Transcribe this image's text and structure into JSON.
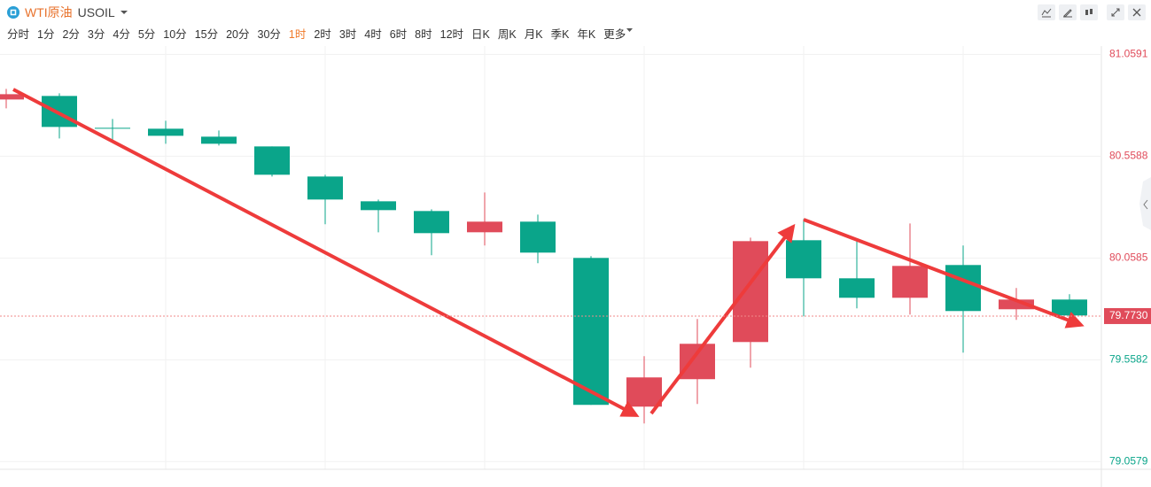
{
  "header": {
    "name": "WTI原油",
    "symbol": "USOIL",
    "timeframes": [
      "分时",
      "1分",
      "2分",
      "3分",
      "4分",
      "5分",
      "10分",
      "15分",
      "20分",
      "30分",
      "1时",
      "2时",
      "3时",
      "4时",
      "6时",
      "8时",
      "12时",
      "日K",
      "周K",
      "月K",
      "季K",
      "年K",
      "更多"
    ],
    "selected_timeframe": 10
  },
  "chart_data": {
    "type": "candlestick",
    "open": [
      80.8373,
      80.8547,
      80.6981,
      80.6937,
      80.6546,
      80.6067,
      80.4588,
      80.337,
      80.2892,
      80.1848,
      80.237,
      80.0587,
      79.3279,
      79.4628,
      79.6454,
      80.1457,
      79.9586,
      79.8629,
      80.0239,
      79.8064,
      79.8542
    ],
    "high": [
      80.8895,
      80.8677,
      80.7416,
      80.7329,
      80.685,
      80.6067,
      80.4675,
      80.3457,
      80.2979,
      80.3805,
      80.2718,
      80.0674,
      79.5758,
      79.7585,
      80.1587,
      80.2501,
      80.1413,
      80.2283,
      80.1196,
      79.9108,
      79.8803
    ],
    "low": [
      80.7938,
      80.6459,
      80.6285,
      80.6198,
      80.6111,
      80.4588,
      80.224,
      80.1848,
      80.0717,
      80.1196,
      80.0326,
      79.3366,
      79.2453,
      79.341,
      79.5193,
      79.7716,
      79.8107,
      79.7803,
      79.5932,
      79.7542,
      79.7542
    ],
    "close": [
      80.8634,
      80.7024,
      80.696,
      80.6589,
      80.6198,
      80.4675,
      80.3457,
      80.2936,
      80.1805,
      80.237,
      80.0848,
      79.3366,
      79.4715,
      79.6367,
      80.1413,
      79.9586,
      79.8629,
      80.0195,
      79.7977,
      79.8542,
      79.7759
    ],
    "up_color": "#e04b5a",
    "down_color": "#0aa58a",
    "ylim": [
      79.02,
      81.1
    ],
    "yticks": [
      79.0579,
      79.5582,
      80.0585,
      80.5588,
      81.0591
    ],
    "last_price": {
      "value": 79.773,
      "label": "79.7730"
    }
  }
}
